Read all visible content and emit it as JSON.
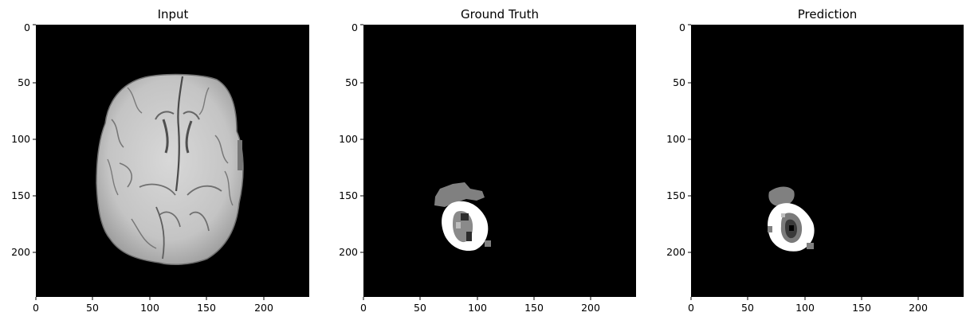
{
  "figure": {
    "background": "#ffffff",
    "panels": [
      {
        "id": "input",
        "title": "Input",
        "image_content": "grayscale axial brain MRI slice on black background",
        "x_ticks": [
          "0",
          "50",
          "100",
          "150",
          "200"
        ],
        "y_ticks": [
          "0",
          "50",
          "100",
          "150",
          "200"
        ]
      },
      {
        "id": "ground-truth",
        "title": "Ground Truth",
        "image_content": "tumor segmentation mask: gray edema region, white enhancing ring, gray/black core",
        "x_ticks": [
          "0",
          "50",
          "100",
          "150",
          "200"
        ],
        "y_ticks": [
          "0",
          "50",
          "100",
          "150",
          "200"
        ]
      },
      {
        "id": "prediction",
        "title": "Prediction",
        "image_content": "predicted tumor segmentation mask: gray edema region, white enhancing ring, dark core",
        "x_ticks": [
          "0",
          "50",
          "100",
          "150",
          "200"
        ],
        "y_ticks": [
          "0",
          "50",
          "100",
          "150",
          "200"
        ]
      }
    ],
    "image_size_units": 240,
    "colors": {
      "image_background": "#000000",
      "mask_gray": "#808080",
      "mask_white": "#ffffff",
      "mask_dark": "#3a3a3a"
    }
  }
}
